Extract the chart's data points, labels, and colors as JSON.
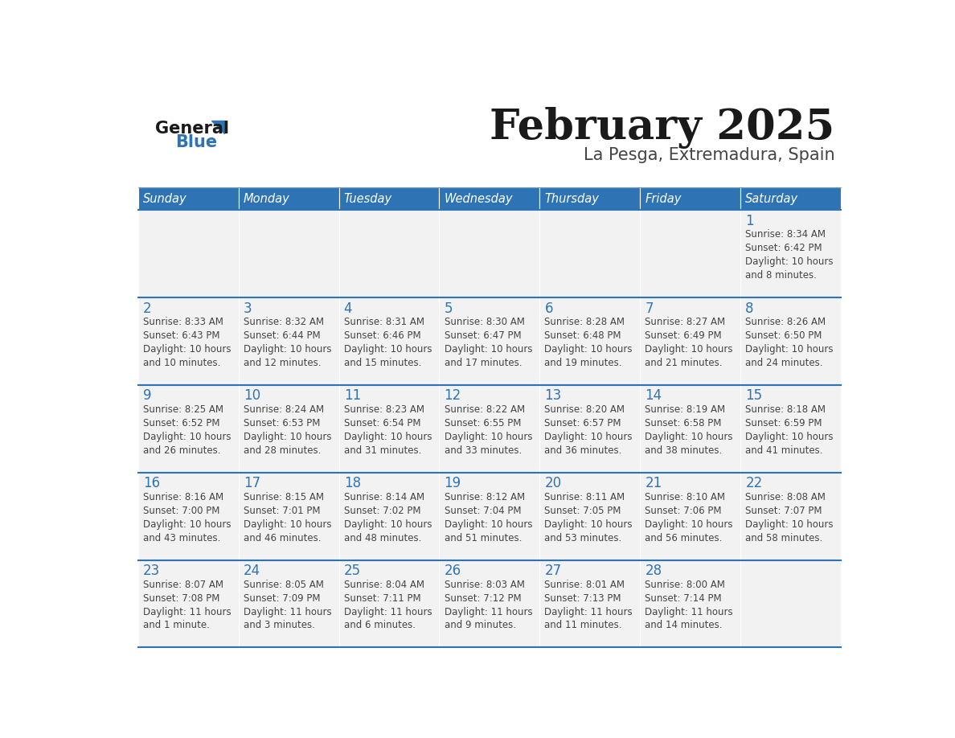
{
  "title": "February 2025",
  "subtitle": "La Pesga, Extremadura, Spain",
  "header_bg": "#2E74B5",
  "header_text_color": "#FFFFFF",
  "cell_bg": "#F2F2F2",
  "text_color": "#444444",
  "day_number_color": "#2E74B5",
  "divider_color": "#2E74B5",
  "days_of_week": [
    "Sunday",
    "Monday",
    "Tuesday",
    "Wednesday",
    "Thursday",
    "Friday",
    "Saturday"
  ],
  "logo_triangle_color": "#2E74B5",
  "calendar_data": [
    [
      {
        "day": "",
        "sunrise": "",
        "sunset": "",
        "daylight_line1": "",
        "daylight_line2": ""
      },
      {
        "day": "",
        "sunrise": "",
        "sunset": "",
        "daylight_line1": "",
        "daylight_line2": ""
      },
      {
        "day": "",
        "sunrise": "",
        "sunset": "",
        "daylight_line1": "",
        "daylight_line2": ""
      },
      {
        "day": "",
        "sunrise": "",
        "sunset": "",
        "daylight_line1": "",
        "daylight_line2": ""
      },
      {
        "day": "",
        "sunrise": "",
        "sunset": "",
        "daylight_line1": "",
        "daylight_line2": ""
      },
      {
        "day": "",
        "sunrise": "",
        "sunset": "",
        "daylight_line1": "",
        "daylight_line2": ""
      },
      {
        "day": "1",
        "sunrise": "8:34 AM",
        "sunset": "6:42 PM",
        "daylight_line1": "Daylight: 10 hours",
        "daylight_line2": "and 8 minutes."
      }
    ],
    [
      {
        "day": "2",
        "sunrise": "8:33 AM",
        "sunset": "6:43 PM",
        "daylight_line1": "Daylight: 10 hours",
        "daylight_line2": "and 10 minutes."
      },
      {
        "day": "3",
        "sunrise": "8:32 AM",
        "sunset": "6:44 PM",
        "daylight_line1": "Daylight: 10 hours",
        "daylight_line2": "and 12 minutes."
      },
      {
        "day": "4",
        "sunrise": "8:31 AM",
        "sunset": "6:46 PM",
        "daylight_line1": "Daylight: 10 hours",
        "daylight_line2": "and 15 minutes."
      },
      {
        "day": "5",
        "sunrise": "8:30 AM",
        "sunset": "6:47 PM",
        "daylight_line1": "Daylight: 10 hours",
        "daylight_line2": "and 17 minutes."
      },
      {
        "day": "6",
        "sunrise": "8:28 AM",
        "sunset": "6:48 PM",
        "daylight_line1": "Daylight: 10 hours",
        "daylight_line2": "and 19 minutes."
      },
      {
        "day": "7",
        "sunrise": "8:27 AM",
        "sunset": "6:49 PM",
        "daylight_line1": "Daylight: 10 hours",
        "daylight_line2": "and 21 minutes."
      },
      {
        "day": "8",
        "sunrise": "8:26 AM",
        "sunset": "6:50 PM",
        "daylight_line1": "Daylight: 10 hours",
        "daylight_line2": "and 24 minutes."
      }
    ],
    [
      {
        "day": "9",
        "sunrise": "8:25 AM",
        "sunset": "6:52 PM",
        "daylight_line1": "Daylight: 10 hours",
        "daylight_line2": "and 26 minutes."
      },
      {
        "day": "10",
        "sunrise": "8:24 AM",
        "sunset": "6:53 PM",
        "daylight_line1": "Daylight: 10 hours",
        "daylight_line2": "and 28 minutes."
      },
      {
        "day": "11",
        "sunrise": "8:23 AM",
        "sunset": "6:54 PM",
        "daylight_line1": "Daylight: 10 hours",
        "daylight_line2": "and 31 minutes."
      },
      {
        "day": "12",
        "sunrise": "8:22 AM",
        "sunset": "6:55 PM",
        "daylight_line1": "Daylight: 10 hours",
        "daylight_line2": "and 33 minutes."
      },
      {
        "day": "13",
        "sunrise": "8:20 AM",
        "sunset": "6:57 PM",
        "daylight_line1": "Daylight: 10 hours",
        "daylight_line2": "and 36 minutes."
      },
      {
        "day": "14",
        "sunrise": "8:19 AM",
        "sunset": "6:58 PM",
        "daylight_line1": "Daylight: 10 hours",
        "daylight_line2": "and 38 minutes."
      },
      {
        "day": "15",
        "sunrise": "8:18 AM",
        "sunset": "6:59 PM",
        "daylight_line1": "Daylight: 10 hours",
        "daylight_line2": "and 41 minutes."
      }
    ],
    [
      {
        "day": "16",
        "sunrise": "8:16 AM",
        "sunset": "7:00 PM",
        "daylight_line1": "Daylight: 10 hours",
        "daylight_line2": "and 43 minutes."
      },
      {
        "day": "17",
        "sunrise": "8:15 AM",
        "sunset": "7:01 PM",
        "daylight_line1": "Daylight: 10 hours",
        "daylight_line2": "and 46 minutes."
      },
      {
        "day": "18",
        "sunrise": "8:14 AM",
        "sunset": "7:02 PM",
        "daylight_line1": "Daylight: 10 hours",
        "daylight_line2": "and 48 minutes."
      },
      {
        "day": "19",
        "sunrise": "8:12 AM",
        "sunset": "7:04 PM",
        "daylight_line1": "Daylight: 10 hours",
        "daylight_line2": "and 51 minutes."
      },
      {
        "day": "20",
        "sunrise": "8:11 AM",
        "sunset": "7:05 PM",
        "daylight_line1": "Daylight: 10 hours",
        "daylight_line2": "and 53 minutes."
      },
      {
        "day": "21",
        "sunrise": "8:10 AM",
        "sunset": "7:06 PM",
        "daylight_line1": "Daylight: 10 hours",
        "daylight_line2": "and 56 minutes."
      },
      {
        "day": "22",
        "sunrise": "8:08 AM",
        "sunset": "7:07 PM",
        "daylight_line1": "Daylight: 10 hours",
        "daylight_line2": "and 58 minutes."
      }
    ],
    [
      {
        "day": "23",
        "sunrise": "8:07 AM",
        "sunset": "7:08 PM",
        "daylight_line1": "Daylight: 11 hours",
        "daylight_line2": "and 1 minute."
      },
      {
        "day": "24",
        "sunrise": "8:05 AM",
        "sunset": "7:09 PM",
        "daylight_line1": "Daylight: 11 hours",
        "daylight_line2": "and 3 minutes."
      },
      {
        "day": "25",
        "sunrise": "8:04 AM",
        "sunset": "7:11 PM",
        "daylight_line1": "Daylight: 11 hours",
        "daylight_line2": "and 6 minutes."
      },
      {
        "day": "26",
        "sunrise": "8:03 AM",
        "sunset": "7:12 PM",
        "daylight_line1": "Daylight: 11 hours",
        "daylight_line2": "and 9 minutes."
      },
      {
        "day": "27",
        "sunrise": "8:01 AM",
        "sunset": "7:13 PM",
        "daylight_line1": "Daylight: 11 hours",
        "daylight_line2": "and 11 minutes."
      },
      {
        "day": "28",
        "sunrise": "8:00 AM",
        "sunset": "7:14 PM",
        "daylight_line1": "Daylight: 11 hours",
        "daylight_line2": "and 14 minutes."
      },
      {
        "day": "",
        "sunrise": "",
        "sunset": "",
        "daylight_line1": "",
        "daylight_line2": ""
      }
    ]
  ]
}
